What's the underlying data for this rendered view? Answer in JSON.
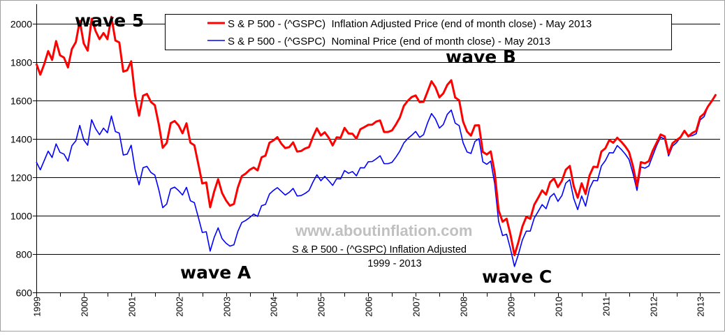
{
  "chart_data": {
    "type": "line",
    "title": "S & P 500 - (^GSPC)  Inflation Adjusted",
    "subtitle": "1999 - 2013",
    "watermark": "www.aboutinflation.com",
    "xlabel": "",
    "ylabel": "",
    "xlim": [
      1999,
      2013.42
    ],
    "ylim": [
      600,
      2100
    ],
    "yticks": [
      600,
      800,
      1000,
      1200,
      1400,
      1600,
      1800,
      2000
    ],
    "xticks": [
      "1999",
      "2000",
      "2001",
      "2002",
      "2003",
      "2004",
      "2005",
      "2006",
      "2007",
      "2008",
      "2009",
      "2010",
      "2011",
      "2012",
      "2013"
    ],
    "grid": "horizontal",
    "legend": "top-center",
    "x_start": "Jan 1999",
    "x_step": "monthly",
    "annotations": [
      {
        "text": "wave 5",
        "date": "2000"
      },
      {
        "text": "wave A",
        "date": "2002-10"
      },
      {
        "text": "wave B",
        "date": "2007-10"
      },
      {
        "text": "wave C",
        "date": "2009-03"
      }
    ],
    "series": [
      {
        "name": "S & P 500 - (^GSPC)  Inflation Adjusted Price (end of month close) - May 2013",
        "color": "#ff0000",
        "values": [
          1791,
          1733,
          1788,
          1856,
          1810,
          1908,
          1834,
          1822,
          1771,
          1867,
          1903,
          2013,
          1896,
          1858,
          2024,
          1960,
          1918,
          1950,
          1918,
          2034,
          1911,
          1901,
          1749,
          1756,
          1803,
          1624,
          1520,
          1624,
          1633,
          1591,
          1574,
          1474,
          1353,
          1378,
          1481,
          1492,
          1469,
          1428,
          1480,
          1379,
          1366,
          1267,
          1167,
          1172,
          1043,
          1125,
          1189,
          1118,
          1079,
          1051,
          1060,
          1146,
          1205,
          1219,
          1238,
          1250,
          1235,
          1303,
          1312,
          1379,
          1391,
          1408,
          1374,
          1351,
          1356,
          1381,
          1333,
          1336,
          1349,
          1356,
          1409,
          1454,
          1417,
          1433,
          1405,
          1365,
          1407,
          1405,
          1456,
          1427,
          1426,
          1400,
          1449,
          1460,
          1472,
          1473,
          1489,
          1495,
          1435,
          1435,
          1443,
          1474,
          1510,
          1571,
          1597,
          1617,
          1625,
          1590,
          1592,
          1645,
          1699,
          1668,
          1615,
          1636,
          1680,
          1704,
          1614,
          1600,
          1489,
          1437,
          1416,
          1469,
          1470,
          1331,
          1318,
          1334,
          1223,
          1027,
          968,
          984,
          900,
          794,
          862,
          943,
          993,
          983,
          1056,
          1092,
          1131,
          1109,
          1173,
          1193,
          1148,
          1181,
          1239,
          1258,
          1154,
          1093,
          1168,
          1112,
          1209,
          1254,
          1252,
          1333,
          1350,
          1393,
          1379,
          1405,
          1385,
          1361,
          1331,
          1256,
          1154,
          1278,
          1272,
          1283,
          1338,
          1380,
          1422,
          1412,
          1323,
          1376,
          1393,
          1407,
          1441,
          1412,
          1430,
          1440,
          1513,
          1530,
          1569,
          1598,
          1631
        ]
      },
      {
        "name": "S & P 500 - (^GSPC)  Nominal Price (end of month close) - May 2013",
        "color": "#0000ff",
        "values": [
          1279,
          1238,
          1286,
          1335,
          1302,
          1373,
          1329,
          1320,
          1283,
          1363,
          1389,
          1469,
          1394,
          1366,
          1499,
          1452,
          1421,
          1455,
          1431,
          1518,
          1437,
          1429,
          1315,
          1320,
          1366,
          1240,
          1160,
          1249,
          1256,
          1224,
          1211,
          1134,
          1041,
          1060,
          1139,
          1148,
          1130,
          1107,
          1147,
          1077,
          1067,
          990,
          912,
          916,
          815,
          886,
          936,
          880,
          856,
          841,
          848,
          917,
          964,
          975,
          990,
          1008,
          996,
          1051,
          1058,
          1112,
          1131,
          1145,
          1126,
          1107,
          1121,
          1141,
          1102,
          1104,
          1115,
          1130,
          1174,
          1212,
          1181,
          1204,
          1181,
          1157,
          1192,
          1191,
          1234,
          1220,
          1229,
          1207,
          1249,
          1248,
          1280,
          1281,
          1295,
          1311,
          1270,
          1270,
          1277,
          1304,
          1336,
          1378,
          1401,
          1418,
          1438,
          1407,
          1421,
          1482,
          1531,
          1503,
          1455,
          1474,
          1527,
          1549,
          1481,
          1468,
          1379,
          1331,
          1323,
          1386,
          1400,
          1280,
          1267,
          1283,
          1165,
          969,
          896,
          903,
          826,
          735,
          798,
          873,
          919,
          919,
          987,
          1021,
          1057,
          1036,
          1096,
          1115,
          1074,
          1104,
          1169,
          1187,
          1089,
          1031,
          1102,
          1049,
          1141,
          1183,
          1181,
          1258,
          1286,
          1327,
          1326,
          1364,
          1345,
          1321,
          1292,
          1219,
          1131,
          1253,
          1247,
          1258,
          1312,
          1366,
          1408,
          1398,
          1310,
          1362,
          1379,
          1407,
          1441,
          1412,
          1416,
          1426,
          1498,
          1515,
          1569,
          1598,
          1631
        ]
      }
    ]
  }
}
